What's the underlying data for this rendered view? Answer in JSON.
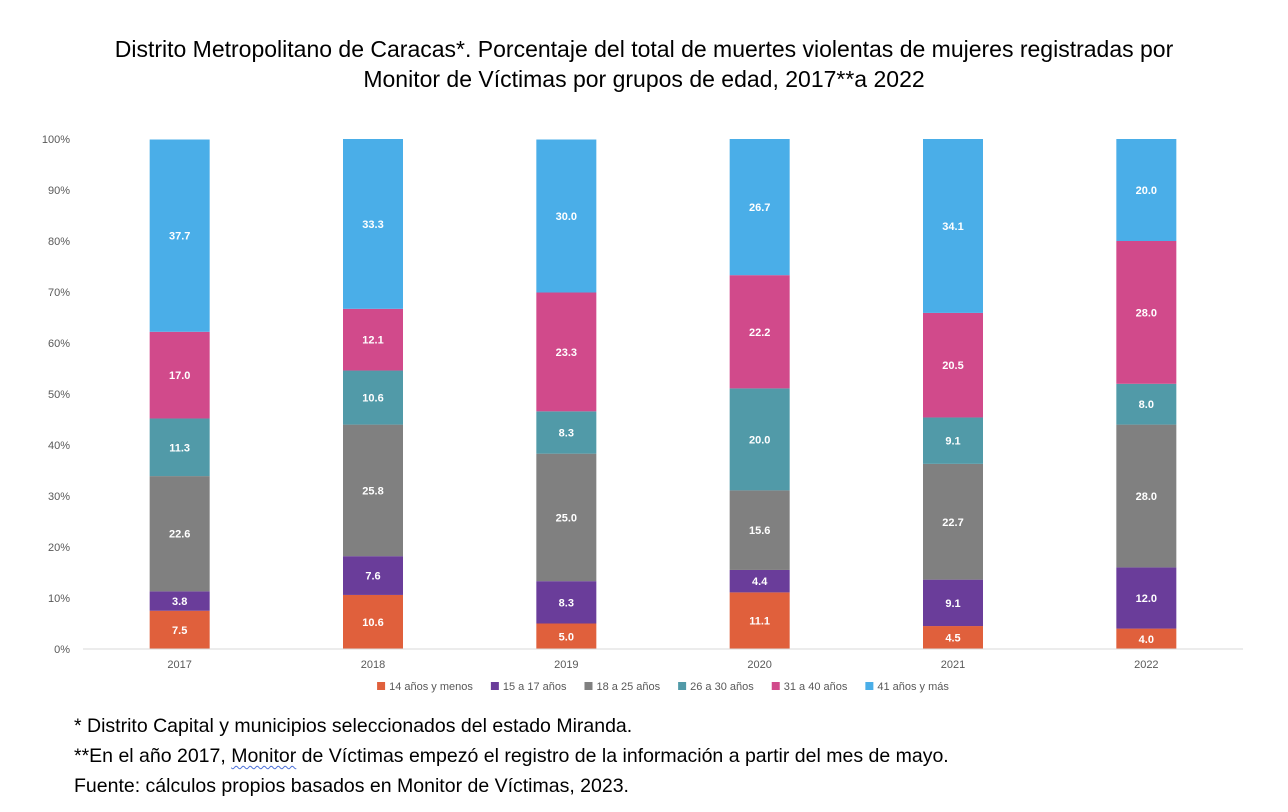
{
  "title": {
    "line1": "Distrito Metropolitano de Caracas*. Porcentaje del total de muertes violentas de mujeres registradas por",
    "line2": "Monitor de Víctimas por grupos de edad, 2017**a 2022"
  },
  "chart_data": {
    "type": "bar",
    "stacked": true,
    "categories": [
      "2017",
      "2018",
      "2019",
      "2020",
      "2021",
      "2022"
    ],
    "y_ticks": [
      "0%",
      "10%",
      "20%",
      "30%",
      "40%",
      "50%",
      "60%",
      "70%",
      "80%",
      "90%",
      "100%"
    ],
    "ylim": [
      0,
      100
    ],
    "grid": false,
    "legend_position": "bottom",
    "series": [
      {
        "name": "14 años y menos",
        "color": "#e0603c",
        "values": [
          7.5,
          10.6,
          5.0,
          11.1,
          4.5,
          4.0
        ],
        "labels": [
          "7.5",
          "10.6",
          "5.0",
          "11.1",
          "4.5",
          "4.0"
        ]
      },
      {
        "name": "15 a 17 años",
        "color": "#6a3d9a",
        "values": [
          3.8,
          7.6,
          8.3,
          4.4,
          9.1,
          12.0
        ],
        "labels": [
          "3.8",
          "7.6",
          "8.3",
          "4.4",
          "9.1",
          "12.0"
        ]
      },
      {
        "name": "18 a 25 años",
        "color": "#808080",
        "values": [
          22.6,
          25.8,
          25.0,
          15.6,
          22.7,
          28.0
        ],
        "labels": [
          "22.6",
          "25.8",
          "25.0",
          "15.6",
          "22.7",
          "28.0"
        ]
      },
      {
        "name": "26 a 30 años",
        "color": "#519aa8",
        "values": [
          11.3,
          10.6,
          8.3,
          20.0,
          9.1,
          8.0
        ],
        "labels": [
          "11.3",
          "10.6",
          "8.3",
          "20.0",
          "9.1",
          "8.0"
        ]
      },
      {
        "name": "31 a 40 años",
        "color": "#d14a8b",
        "values": [
          17.0,
          12.1,
          23.3,
          22.2,
          20.5,
          28.0
        ],
        "labels": [
          "17.0",
          "12.1",
          "23.3",
          "22.2",
          "20.5",
          "28.0"
        ]
      },
      {
        "name": "41 años y más",
        "color": "#4aaee8",
        "values": [
          37.7,
          33.3,
          30.0,
          26.7,
          34.1,
          20.0
        ],
        "labels": [
          "37.7",
          "33.3",
          "30.0",
          "26.7",
          "34.1",
          "20.0"
        ]
      }
    ]
  },
  "notes": {
    "line1": "* Distrito Capital y municipios seleccionados del estado Miranda.",
    "line2_pre": "**En el año 2017, ",
    "line2_flag": "Monitor",
    "line2_post": " de Víctimas empezó el registro de la información a partir del mes de mayo.",
    "line3": "Fuente: cálculos propios basados en Monitor de Víctimas, 2023."
  }
}
